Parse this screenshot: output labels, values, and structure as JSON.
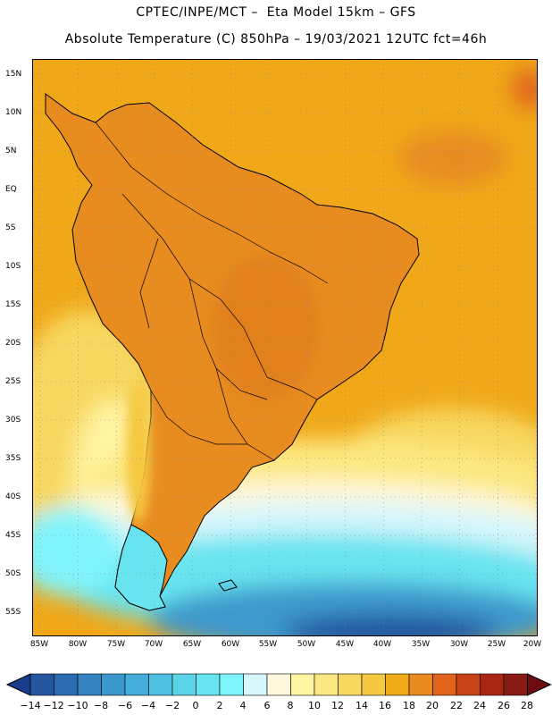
{
  "header": {
    "line1": "CPTEC/INPE/MCT –  Eta Model 15km – GFS",
    "line2": "Absolute Temperature (C) 850hPa – 19/03/2021 12UTC fct=46h"
  },
  "map": {
    "lat_labels": [
      "15N",
      "10N",
      "5N",
      "EQ",
      "5S",
      "10S",
      "15S",
      "20S",
      "25S",
      "30S",
      "35S",
      "40S",
      "45S",
      "50S",
      "55S"
    ],
    "lon_labels": [
      "85W",
      "80W",
      "75W",
      "70W",
      "65W",
      "60W",
      "55W",
      "50W",
      "45W",
      "40W",
      "35W",
      "30W",
      "25W",
      "20W"
    ],
    "colors": {
      "ocean_warm": "#f0a818",
      "land_warm": "#e88c20",
      "hot": "#e0641e",
      "mild": "#f8d860",
      "pale": "#fff8d8",
      "cold_cyan": "#58d8ec",
      "cold_blue": "#2c8ccc",
      "coast": "#000000"
    }
  },
  "colorbar": {
    "labels": [
      "−14",
      "−12",
      "−10",
      "−8",
      "−6",
      "−4",
      "−2",
      "0",
      "2",
      "4",
      "6",
      "8",
      "10",
      "12",
      "14",
      "16",
      "18",
      "20",
      "22",
      "24",
      "26",
      "28"
    ],
    "colors": [
      "#1a3c8c",
      "#2456a0",
      "#2c6cb0",
      "#3482c0",
      "#3c98cc",
      "#44acd8",
      "#50c0e0",
      "#5cd4e8",
      "#68e4f0",
      "#80f4fc",
      "#d4f6fc",
      "#fff8dc",
      "#fff4a0",
      "#fce880",
      "#f8d860",
      "#f4c840",
      "#f0ac18",
      "#e88c20",
      "#e0641e",
      "#c84418",
      "#a82814",
      "#881c14",
      "#6c0c10"
    ]
  }
}
